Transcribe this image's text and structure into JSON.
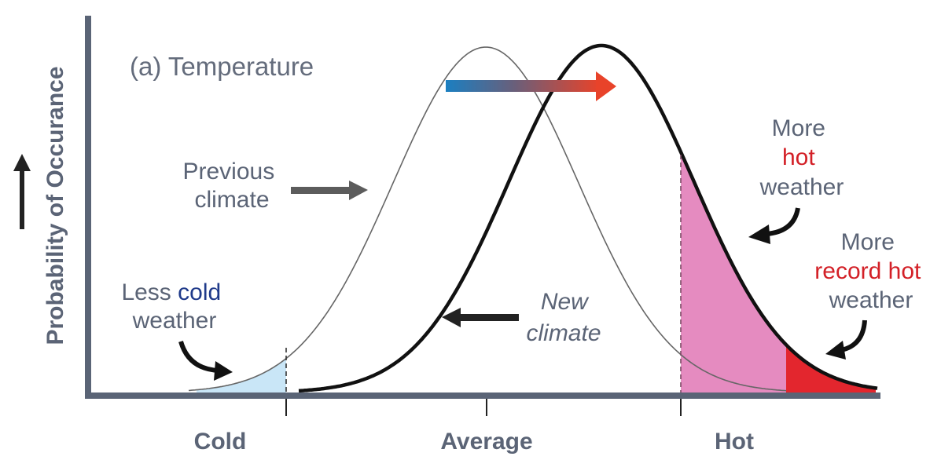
{
  "title": "(a) Temperature",
  "y_axis_label": "Probability of Occurance",
  "x_axis": {
    "ticks": [
      {
        "label": "Cold",
        "color": "#1f3a8a"
      },
      {
        "label": "Average",
        "color": "#5b6476"
      },
      {
        "label": "Hot",
        "color": "#d32027"
      }
    ]
  },
  "annotations": {
    "previous_climate": [
      "Previous",
      "climate"
    ],
    "new_climate": [
      "New",
      "climate"
    ],
    "less_cold": {
      "prefix": "Less ",
      "highlight": "cold",
      "line2": "weather"
    },
    "more_hot": {
      "line1": "More",
      "highlight": "hot",
      "line3": "weather"
    },
    "more_record_hot": {
      "line1": "More",
      "highlight": "record hot",
      "line3": "weather"
    }
  },
  "colors": {
    "axis": "#5a6476",
    "text_gray": "#5b6476",
    "cold_blue": "#1f3a8a",
    "hot_red": "#d32027",
    "cold_fill": "#c9e6f7",
    "hot_fill": "#e58bc0",
    "record_hot_fill": "#e3262e",
    "shift_arrow_start": "#1b7fc1",
    "shift_arrow_end": "#e8432a"
  }
}
